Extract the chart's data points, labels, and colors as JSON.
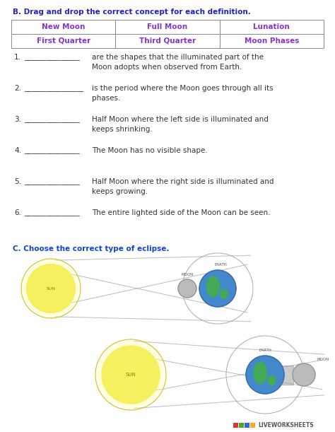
{
  "bg_color": "#ffffff",
  "section_b_title": "B. Drag and drop the correct concept for each definition.",
  "table_row1": [
    "New Moon",
    "Full Moon",
    "Lunation"
  ],
  "table_row2": [
    "First Quarter",
    "Third Quarter",
    "Moon Phases"
  ],
  "table_text_color": "#8833cc",
  "section_b_title_color": "#2222bb",
  "section_c_title": "C. Choose the correct type of eclipse.",
  "section_c_title_color": "#1144cc",
  "text_color": "#333333",
  "items": [
    {
      "num": "1.",
      "blank": "_______________",
      "text": "are the shapes that the illuminated part of the\nMoon adopts when observed from Earth."
    },
    {
      "num": "2.",
      "blank": "________________",
      "text": "is the period where the Moon goes through all its\nphases."
    },
    {
      "num": "3.",
      "blank": "_______________",
      "text": "Half Moon where the left side is illuminated and\nkeeps shrinking."
    },
    {
      "num": "4.",
      "blank": "_______________",
      "text": "The Moon has no visible shape."
    },
    {
      "num": "5.",
      "blank": "_______________",
      "text": "Half Moon where the right side is illuminated and\nkeeps growing."
    },
    {
      "num": "6.",
      "blank": "_______________",
      "text": "The entire lighted side of the Moon can be seen."
    }
  ],
  "sun_color": "#f5f060",
  "sun_border": "#d4c020",
  "earth_color": "#4488cc",
  "land_color": "#44aa55",
  "moon_color": "#bbbbbb",
  "shadow_color": "#bbbbbb",
  "orbit_color": "#aaaaaa",
  "label_color": "#555555",
  "lw_colors": [
    "#dd3333",
    "#44aa22",
    "#3366dd",
    "#ffaa22"
  ],
  "lw_text_color": "#555555"
}
